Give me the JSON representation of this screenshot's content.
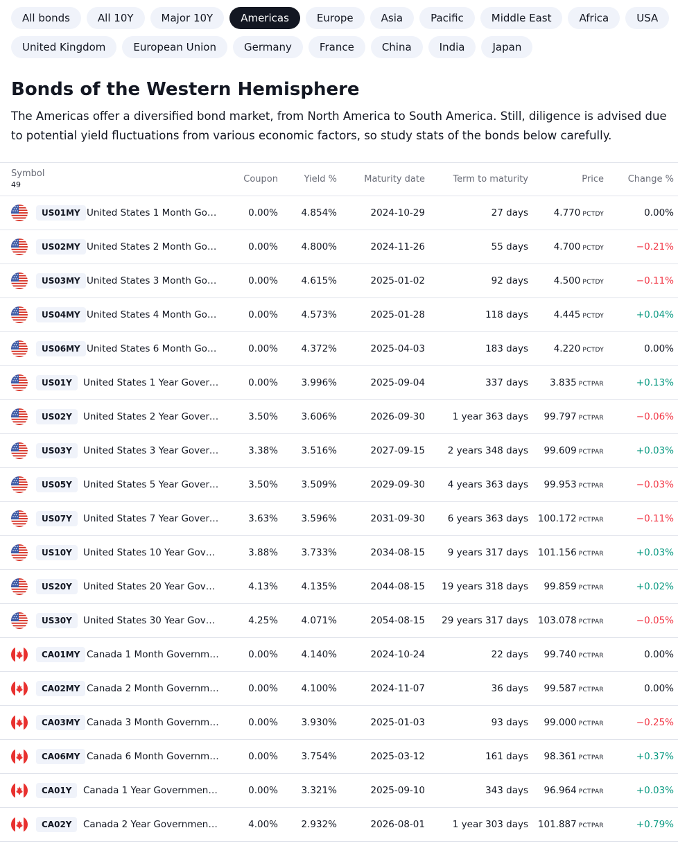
{
  "filters": {
    "row1": [
      {
        "label": "All bonds",
        "active": false
      },
      {
        "label": "All 10Y",
        "active": false
      },
      {
        "label": "Major 10Y",
        "active": false
      },
      {
        "label": "Americas",
        "active": true
      },
      {
        "label": "Europe",
        "active": false
      },
      {
        "label": "Asia",
        "active": false
      },
      {
        "label": "Pacific",
        "active": false
      },
      {
        "label": "Middle East",
        "active": false
      },
      {
        "label": "Africa",
        "active": false
      },
      {
        "label": "USA",
        "active": false
      }
    ],
    "row2": [
      {
        "label": "United Kingdom",
        "active": false
      },
      {
        "label": "European Union",
        "active": false
      },
      {
        "label": "Germany",
        "active": false
      },
      {
        "label": "France",
        "active": false
      },
      {
        "label": "China",
        "active": false
      },
      {
        "label": "India",
        "active": false
      },
      {
        "label": "Japan",
        "active": false
      }
    ]
  },
  "header": {
    "title": "Bonds of the Western Hemisphere",
    "description": "The Americas offer a diversified bond market, from North America to South America. Still, diligence is advised due to potential yield fluctuations from various economic factors, so study stats of the bonds below carefully."
  },
  "table": {
    "columns": {
      "symbol": "Symbol",
      "count": "49",
      "coupon": "Coupon",
      "yield": "Yield %",
      "maturity": "Maturity date",
      "term": "Term to maturity",
      "price": "Price",
      "change": "Change %"
    },
    "rows": [
      {
        "flag": "us-flag-icon",
        "ticker": "US01MY",
        "name": "United States 1 Month Gove...",
        "coupon": "0.00%",
        "yield": "4.854%",
        "maturity": "2024-10-29",
        "term": "27 days",
        "price": "4.770",
        "unit": "PCTDY",
        "change": "0.00%",
        "dir": "neu"
      },
      {
        "flag": "us-flag-icon",
        "ticker": "US02MY",
        "name": "United States 2 Month Gove...",
        "coupon": "0.00%",
        "yield": "4.800%",
        "maturity": "2024-11-26",
        "term": "55 days",
        "price": "4.700",
        "unit": "PCTDY",
        "change": "−0.21%",
        "dir": "neg"
      },
      {
        "flag": "us-flag-icon",
        "ticker": "US03MY",
        "name": "United States 3 Month Gove...",
        "coupon": "0.00%",
        "yield": "4.615%",
        "maturity": "2025-01-02",
        "term": "92 days",
        "price": "4.500",
        "unit": "PCTDY",
        "change": "−0.11%",
        "dir": "neg"
      },
      {
        "flag": "us-flag-icon",
        "ticker": "US04MY",
        "name": "United States 4 Month Gove...",
        "coupon": "0.00%",
        "yield": "4.573%",
        "maturity": "2025-01-28",
        "term": "118 days",
        "price": "4.445",
        "unit": "PCTDY",
        "change": "+0.04%",
        "dir": "pos"
      },
      {
        "flag": "us-flag-icon",
        "ticker": "US06MY",
        "name": "United States 6 Month Gove...",
        "coupon": "0.00%",
        "yield": "4.372%",
        "maturity": "2025-04-03",
        "term": "183 days",
        "price": "4.220",
        "unit": "PCTDY",
        "change": "0.00%",
        "dir": "neu"
      },
      {
        "flag": "us-flag-icon",
        "ticker": "US01Y",
        "name": "United States 1 Year Govern...",
        "coupon": "0.00%",
        "yield": "3.996%",
        "maturity": "2025-09-04",
        "term": "337 days",
        "price": "3.835",
        "unit": "PCTPAR",
        "change": "+0.13%",
        "dir": "pos"
      },
      {
        "flag": "us-flag-icon",
        "ticker": "US02Y",
        "name": "United States 2 Year Govern...",
        "coupon": "3.50%",
        "yield": "3.606%",
        "maturity": "2026-09-30",
        "term": "1 year 363 days",
        "price": "99.797",
        "unit": "PCTPAR",
        "change": "−0.06%",
        "dir": "neg"
      },
      {
        "flag": "us-flag-icon",
        "ticker": "US03Y",
        "name": "United States 3 Year Govern...",
        "coupon": "3.38%",
        "yield": "3.516%",
        "maturity": "2027-09-15",
        "term": "2 years 348 days",
        "price": "99.609",
        "unit": "PCTPAR",
        "change": "+0.03%",
        "dir": "pos"
      },
      {
        "flag": "us-flag-icon",
        "ticker": "US05Y",
        "name": "United States 5 Year Govern...",
        "coupon": "3.50%",
        "yield": "3.509%",
        "maturity": "2029-09-30",
        "term": "4 years 363 days",
        "price": "99.953",
        "unit": "PCTPAR",
        "change": "−0.03%",
        "dir": "neg"
      },
      {
        "flag": "us-flag-icon",
        "ticker": "US07Y",
        "name": "United States 7 Year Govern...",
        "coupon": "3.63%",
        "yield": "3.596%",
        "maturity": "2031-09-30",
        "term": "6 years 363 days",
        "price": "100.172",
        "unit": "PCTPAR",
        "change": "−0.11%",
        "dir": "neg"
      },
      {
        "flag": "us-flag-icon",
        "ticker": "US10Y",
        "name": "United States 10 Year Gover...",
        "coupon": "3.88%",
        "yield": "3.733%",
        "maturity": "2034-08-15",
        "term": "9 years 317 days",
        "price": "101.156",
        "unit": "PCTPAR",
        "change": "+0.03%",
        "dir": "pos"
      },
      {
        "flag": "us-flag-icon",
        "ticker": "US20Y",
        "name": "United States 20 Year Gover...",
        "coupon": "4.13%",
        "yield": "4.135%",
        "maturity": "2044-08-15",
        "term": "19 years 318 days",
        "price": "99.859",
        "unit": "PCTPAR",
        "change": "+0.02%",
        "dir": "pos"
      },
      {
        "flag": "us-flag-icon",
        "ticker": "US30Y",
        "name": "United States 30 Year Gover...",
        "coupon": "4.25%",
        "yield": "4.071%",
        "maturity": "2054-08-15",
        "term": "29 years 317 days",
        "price": "103.078",
        "unit": "PCTPAR",
        "change": "−0.05%",
        "dir": "neg"
      },
      {
        "flag": "ca-flag-icon",
        "ticker": "CA01MY",
        "name": "Canada 1 Month Governmen...",
        "coupon": "0.00%",
        "yield": "4.140%",
        "maturity": "2024-10-24",
        "term": "22 days",
        "price": "99.740",
        "unit": "PCTPAR",
        "change": "0.00%",
        "dir": "neu"
      },
      {
        "flag": "ca-flag-icon",
        "ticker": "CA02MY",
        "name": "Canada 2 Month Governmen...",
        "coupon": "0.00%",
        "yield": "4.100%",
        "maturity": "2024-11-07",
        "term": "36 days",
        "price": "99.587",
        "unit": "PCTPAR",
        "change": "0.00%",
        "dir": "neu"
      },
      {
        "flag": "ca-flag-icon",
        "ticker": "CA03MY",
        "name": "Canada 3 Month Governmen...",
        "coupon": "0.00%",
        "yield": "3.930%",
        "maturity": "2025-01-03",
        "term": "93 days",
        "price": "99.000",
        "unit": "PCTPAR",
        "change": "−0.25%",
        "dir": "neg"
      },
      {
        "flag": "ca-flag-icon",
        "ticker": "CA06MY",
        "name": "Canada 6 Month Governmen...",
        "coupon": "0.00%",
        "yield": "3.754%",
        "maturity": "2025-03-12",
        "term": "161 days",
        "price": "98.361",
        "unit": "PCTPAR",
        "change": "+0.37%",
        "dir": "pos"
      },
      {
        "flag": "ca-flag-icon",
        "ticker": "CA01Y",
        "name": "Canada 1 Year Government ...",
        "coupon": "0.00%",
        "yield": "3.321%",
        "maturity": "2025-09-10",
        "term": "343 days",
        "price": "96.964",
        "unit": "PCTPAR",
        "change": "+0.03%",
        "dir": "pos"
      },
      {
        "flag": "ca-flag-icon",
        "ticker": "CA02Y",
        "name": "Canada 2 Year Government ...",
        "coupon": "4.00%",
        "yield": "2.932%",
        "maturity": "2026-08-01",
        "term": "1 year 303 days",
        "price": "101.887",
        "unit": "PCTPAR",
        "change": "+0.79%",
        "dir": "pos"
      }
    ]
  },
  "colors": {
    "positive": "#089981",
    "negative": "#f23645",
    "chip_bg": "#f0f3fa",
    "chip_active_bg": "#131722"
  }
}
